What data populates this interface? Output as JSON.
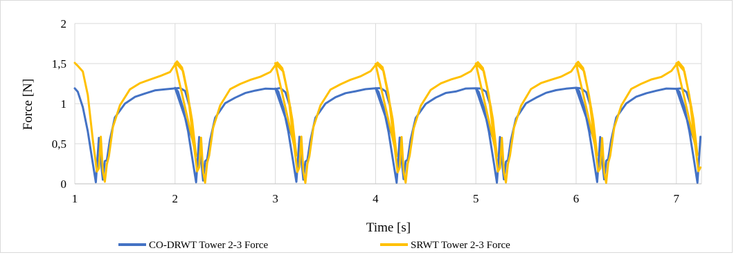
{
  "chart_data": {
    "type": "line",
    "title": "",
    "xlabel": "Time [s]",
    "ylabel": "Force [N]",
    "xlim": [
      1,
      7.25
    ],
    "ylim": [
      0,
      2
    ],
    "x_ticks": [
      "1",
      "2",
      "3",
      "4",
      "5",
      "6",
      "7"
    ],
    "y_ticks": [
      "0",
      "0,5",
      "1",
      "1,5",
      "2"
    ],
    "grid": true,
    "legend_position": "bottom",
    "series": [
      {
        "name": "CO-DRWT Tower 2-3 Force",
        "color": "#4472c4",
        "x": [
          1.0,
          1.03,
          1.08,
          1.13,
          1.18,
          1.21,
          1.22,
          1.24,
          1.26,
          1.28,
          1.3,
          1.32,
          1.35,
          1.4,
          1.5,
          1.6,
          1.7,
          1.8,
          1.9,
          2.0,
          2.05,
          2.1,
          2.15,
          2.19
        ],
        "y": [
          1.19,
          1.15,
          0.95,
          0.65,
          0.25,
          0.02,
          0.2,
          0.58,
          0.3,
          0.05,
          0.28,
          0.3,
          0.55,
          0.82,
          1.0,
          1.08,
          1.13,
          1.16,
          1.18,
          1.19,
          1.19,
          1.15,
          0.95,
          0.5
        ]
      },
      {
        "name": "SRWT Tower 2-3 Force",
        "color": "#ffc000",
        "x": [
          1.0,
          1.03,
          1.08,
          1.13,
          1.18,
          1.22,
          1.24,
          1.26,
          1.28,
          1.3,
          1.32,
          1.34,
          1.38,
          1.45,
          1.55,
          1.65,
          1.75,
          1.85,
          1.95,
          2.02,
          2.07,
          2.12,
          2.17,
          2.21
        ],
        "y": [
          1.5,
          1.47,
          1.4,
          1.1,
          0.55,
          0.15,
          0.2,
          0.58,
          0.15,
          0.02,
          0.25,
          0.35,
          0.7,
          0.98,
          1.18,
          1.25,
          1.3,
          1.34,
          1.4,
          1.52,
          1.45,
          1.15,
          0.8,
          0.35
        ]
      }
    ]
  }
}
